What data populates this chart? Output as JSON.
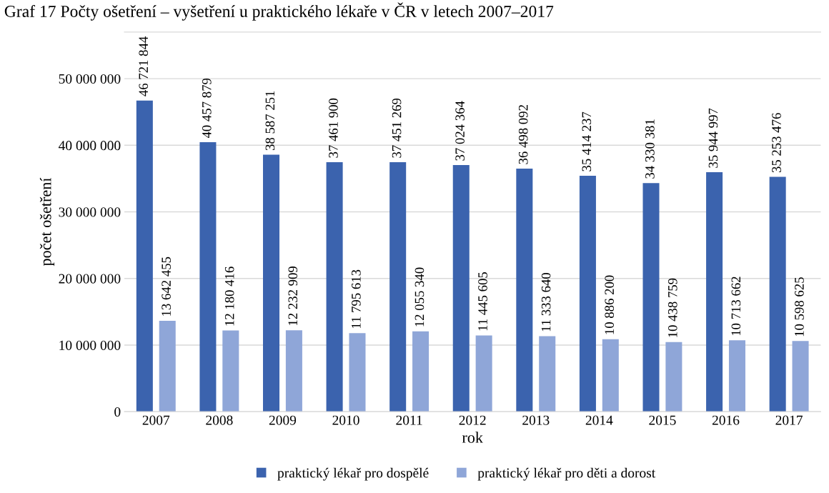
{
  "chart_data": {
    "type": "bar",
    "title": "Graf 17 Počty ošetření – vyšetření u praktického lékaře v ČR v letech 2007–2017",
    "xlabel": "rok",
    "ylabel": "počet ošetření",
    "categories": [
      "2007",
      "2008",
      "2009",
      "2010",
      "2011",
      "2012",
      "2013",
      "2014",
      "2015",
      "2016",
      "2017"
    ],
    "series": [
      {
        "name": "praktický lékař pro dospělé",
        "color": "#3b63ae",
        "values": [
          46721844,
          40457879,
          38587251,
          37461900,
          37451269,
          37024364,
          36498092,
          35414237,
          34330381,
          35944997,
          35253476
        ],
        "value_labels": [
          "46 721 844",
          "40 457 879",
          "38 587 251",
          "37 461 900",
          "37 451 269",
          "37 024 364",
          "36 498 092",
          "35 414 237",
          "34 330 381",
          "35 944 997",
          "35 253 476"
        ]
      },
      {
        "name": "praktický lékař pro děti a dorost",
        "color": "#8fa6d8",
        "values": [
          13642455,
          12180416,
          12232909,
          11795613,
          12055340,
          11445605,
          11333640,
          10886200,
          10438759,
          10713662,
          10598625
        ],
        "value_labels": [
          "13 642 455",
          "12 180 416",
          "12 232 909",
          "11 795 613",
          "12 055 340",
          "11 445 605",
          "11 333 640",
          "10 886 200",
          "10 438 759",
          "10 713 662",
          "10 598 625"
        ]
      }
    ],
    "ylim": [
      0,
      57000000
    ],
    "yticks": [
      {
        "value": 0,
        "label": "0"
      },
      {
        "value": 10000000,
        "label": "10 000 000"
      },
      {
        "value": 20000000,
        "label": "20 000 000"
      },
      {
        "value": 30000000,
        "label": "30 000 000"
      },
      {
        "value": 40000000,
        "label": "40 000 000"
      },
      {
        "value": 50000000,
        "label": "50 000 000"
      }
    ],
    "grid": "y",
    "legend": "bottom"
  }
}
